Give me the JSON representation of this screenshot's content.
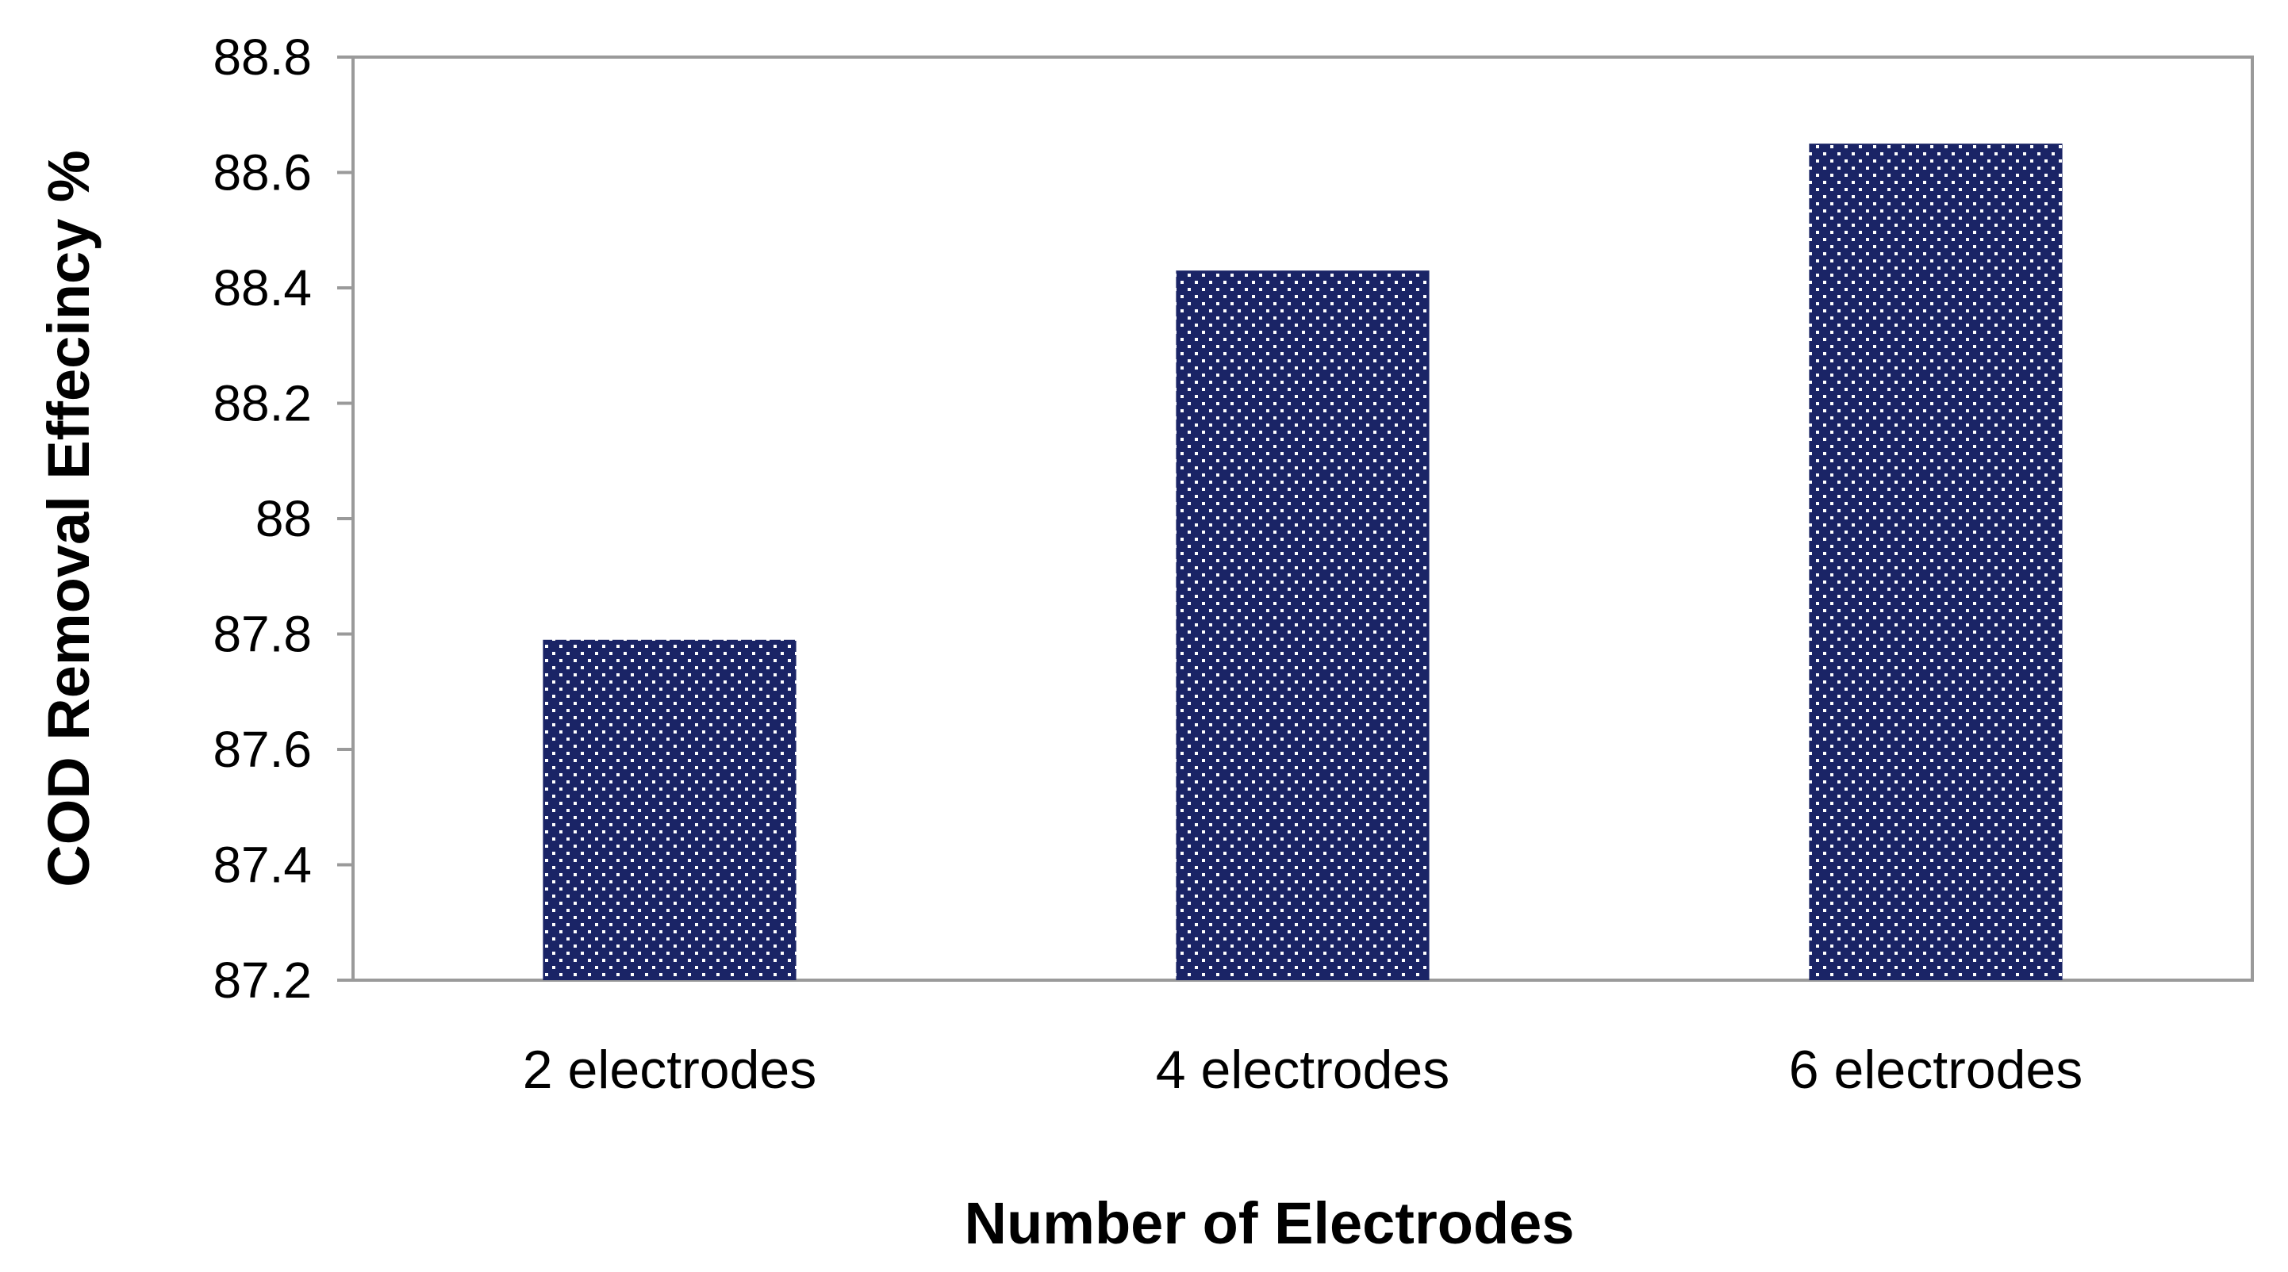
{
  "chart_data": {
    "type": "bar",
    "title": "",
    "xlabel": "Number of Electrodes",
    "ylabel": "COD Removal Effecincy %",
    "categories": [
      "2 electrodes",
      "4 electrodes",
      "6 electrodes"
    ],
    "values": [
      87.79,
      88.43,
      88.65
    ],
    "ylim": [
      87.2,
      88.8
    ],
    "yticks": [
      "87.2",
      "87.4",
      "87.6",
      "87.8",
      "88",
      "88.2",
      "88.4",
      "88.6",
      "88.8"
    ],
    "grid": false,
    "legend": "none",
    "bar_color": "#1a2466",
    "dot_color": "#ffffff",
    "axis_color": "#9a9a9a"
  }
}
